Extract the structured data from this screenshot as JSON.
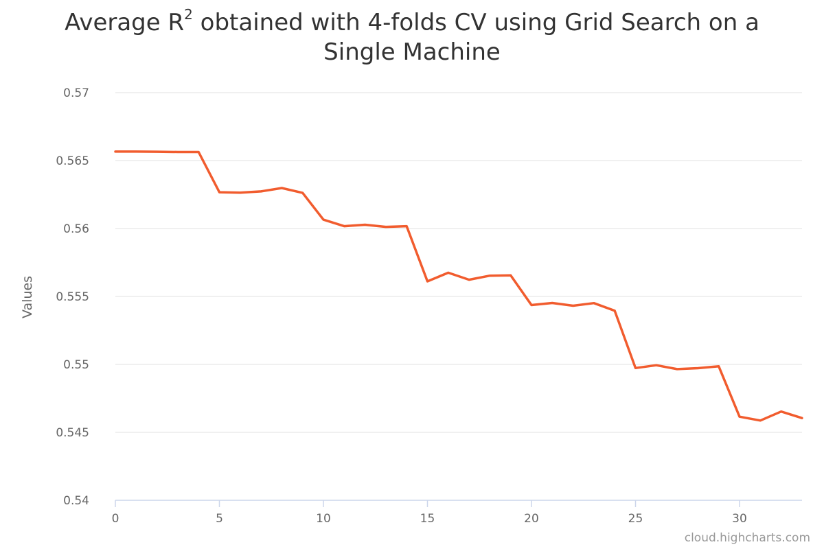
{
  "chart_data": {
    "type": "line",
    "title_main": "Average R",
    "title_sup": "2",
    "title_rest_line1": " obtained with 4-folds CV using Grid Search on a",
    "title_line2": "Single Machine",
    "xlabel": "",
    "ylabel": "Values",
    "xlim": [
      0,
      33
    ],
    "ylim": [
      0.54,
      0.57
    ],
    "x_ticks": [
      0,
      5,
      10,
      15,
      20,
      25,
      30
    ],
    "y_ticks": [
      0.54,
      0.545,
      0.55,
      0.555,
      0.56,
      0.565,
      0.57
    ],
    "y_tick_labels": [
      "0.54",
      "0.545",
      "0.55",
      "0.555",
      "0.56",
      "0.565",
      "0.57"
    ],
    "grid": true,
    "series": [
      {
        "color": "#f15c2e",
        "x": [
          0,
          1,
          2,
          3,
          4,
          5,
          6,
          7,
          8,
          9,
          10,
          11,
          12,
          13,
          14,
          15,
          16,
          17,
          18,
          19,
          20,
          21,
          22,
          23,
          24,
          25,
          26,
          27,
          28,
          29,
          30,
          31,
          32,
          33
        ],
        "values": [
          0.56566,
          0.56566,
          0.56565,
          0.56563,
          0.56563,
          0.56267,
          0.56264,
          0.56273,
          0.56298,
          0.56262,
          0.56065,
          0.56017,
          0.56028,
          0.56012,
          0.56017,
          0.55611,
          0.55675,
          0.55623,
          0.55653,
          0.55655,
          0.55437,
          0.55452,
          0.55432,
          0.55451,
          0.55395,
          0.54973,
          0.54994,
          0.54965,
          0.54972,
          0.54986,
          0.54615,
          0.54587,
          0.54653,
          0.54605
        ]
      }
    ]
  },
  "credits": "cloud.highcharts.com"
}
